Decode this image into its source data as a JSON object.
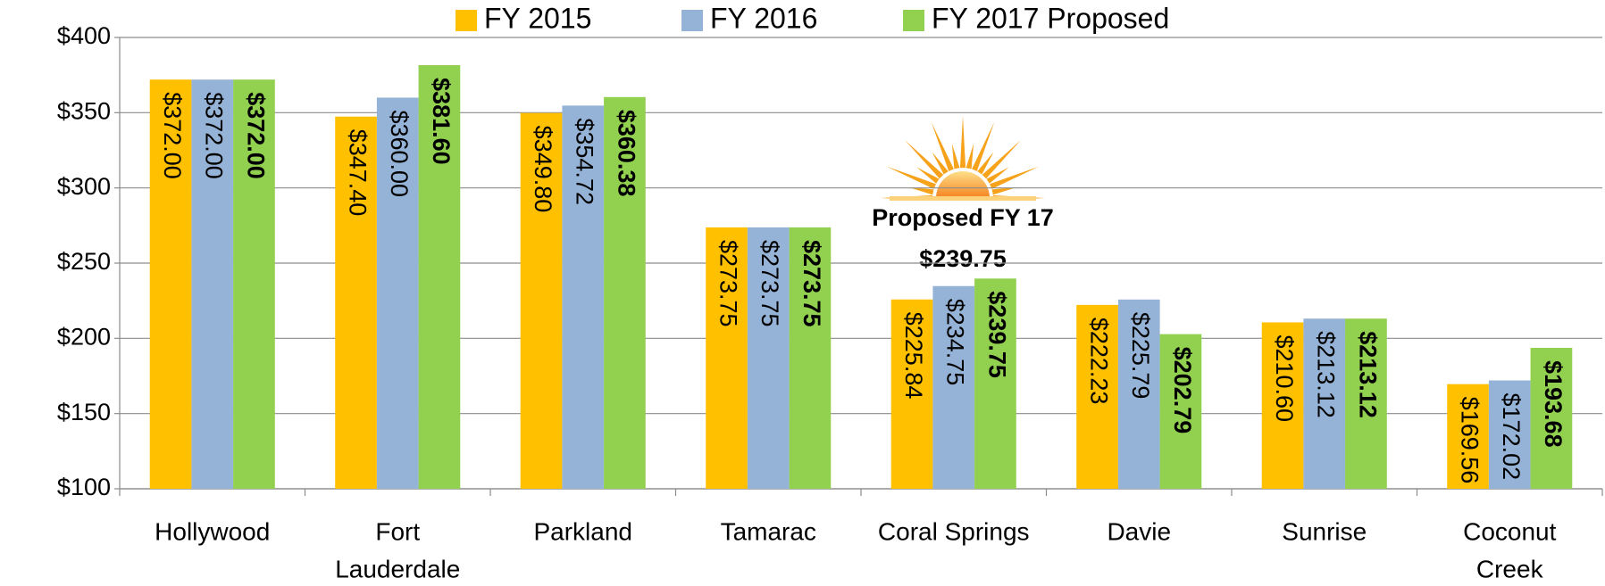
{
  "chart_data": {
    "type": "bar",
    "categories": [
      [
        "Hollywood"
      ],
      [
        "Fort",
        "Lauderdale"
      ],
      [
        "Parkland"
      ],
      [
        "Tamarac"
      ],
      [
        "Coral Springs"
      ],
      [
        "Davie"
      ],
      [
        "Sunrise"
      ],
      [
        "Coconut",
        "Creek"
      ]
    ],
    "series": [
      {
        "name": "FY 2015",
        "color": "#ffc000",
        "bold": false,
        "values": [
          372.0,
          347.4,
          349.8,
          273.75,
          225.84,
          222.23,
          210.6,
          169.56
        ],
        "value_labels": [
          "$372.00",
          "$347.40",
          "$349.80",
          "$273.75",
          "$225.84",
          "$222.23",
          "$210.60",
          "$169.56"
        ]
      },
      {
        "name": "FY 2016",
        "color": "#95b3d7",
        "bold": false,
        "values": [
          372.0,
          360.0,
          354.72,
          273.75,
          234.75,
          225.79,
          213.12,
          172.02
        ],
        "value_labels": [
          "$372.00",
          "$360.00",
          "$354.72",
          "$273.75",
          "$234.75",
          "$225.79",
          "$213.12",
          "$172.02"
        ]
      },
      {
        "name": "FY 2017 Proposed",
        "color": "#92d050",
        "bold": true,
        "values": [
          372.0,
          381.6,
          360.38,
          273.75,
          239.75,
          202.79,
          213.12,
          193.68
        ],
        "value_labels": [
          "$372.00",
          "$381.60",
          "$360.38",
          "$273.75",
          "$239.75",
          "$202.79",
          "$213.12",
          "$193.68"
        ]
      }
    ],
    "ylim": [
      100,
      400
    ],
    "yticks": [
      {
        "value": 100,
        "label": "$100"
      },
      {
        "value": 150,
        "label": "$150"
      },
      {
        "value": 200,
        "label": "$200"
      },
      {
        "value": 250,
        "label": "$250"
      },
      {
        "value": 300,
        "label": "$300"
      },
      {
        "value": 350,
        "label": "$350"
      },
      {
        "value": 400,
        "label": "$400"
      }
    ],
    "grid": true,
    "legend": "top",
    "annotation": {
      "lines": [
        "Proposed FY 17",
        "$239.75"
      ]
    }
  }
}
